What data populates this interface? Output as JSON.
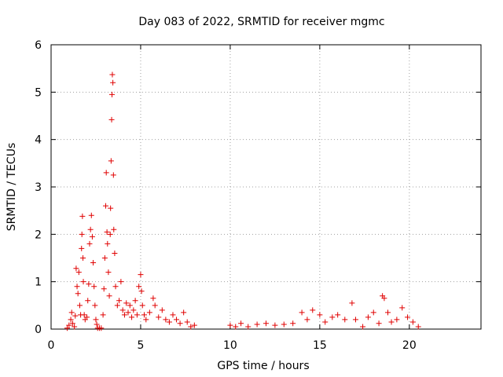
{
  "chart_data": {
    "type": "scatter",
    "title": "Day 083 of 2022, SRMTID for receiver mgmc",
    "xlabel": "GPS time / hours",
    "ylabel": "SRMTID / TECUs",
    "xlim": [
      0,
      24
    ],
    "ylim": [
      0,
      6
    ],
    "xticks": [
      0,
      5,
      10,
      15,
      20
    ],
    "yticks": [
      0,
      1,
      2,
      3,
      4,
      5,
      6
    ],
    "grid": true,
    "marker": "+",
    "color": "#e00000",
    "series": [
      {
        "name": "SRMTID",
        "points": [
          [
            0.9,
            0.02
          ],
          [
            1.0,
            0.08
          ],
          [
            1.1,
            0.2
          ],
          [
            1.15,
            0.35
          ],
          [
            1.2,
            0.12
          ],
          [
            1.3,
            0.05
          ],
          [
            1.35,
            0.28
          ],
          [
            1.4,
            1.28
          ],
          [
            1.45,
            0.9
          ],
          [
            1.5,
            0.75
          ],
          [
            1.55,
            1.2
          ],
          [
            1.6,
            0.5
          ],
          [
            1.65,
            0.3
          ],
          [
            1.7,
            1.7
          ],
          [
            1.72,
            2.0
          ],
          [
            1.75,
            2.38
          ],
          [
            1.78,
            1.5
          ],
          [
            1.8,
            1.0
          ],
          [
            1.85,
            0.3
          ],
          [
            1.9,
            0.2
          ],
          [
            2.0,
            0.25
          ],
          [
            2.05,
            0.6
          ],
          [
            2.1,
            0.95
          ],
          [
            2.15,
            1.8
          ],
          [
            2.2,
            2.1
          ],
          [
            2.25,
            2.4
          ],
          [
            2.3,
            1.95
          ],
          [
            2.35,
            1.4
          ],
          [
            2.4,
            0.9
          ],
          [
            2.45,
            0.5
          ],
          [
            2.5,
            0.2
          ],
          [
            2.55,
            0.1
          ],
          [
            2.6,
            0.02
          ],
          [
            2.7,
            0.02
          ],
          [
            2.8,
            0.02
          ],
          [
            2.9,
            0.3
          ],
          [
            2.95,
            0.85
          ],
          [
            3.0,
            1.5
          ],
          [
            3.05,
            2.6
          ],
          [
            3.08,
            3.3
          ],
          [
            3.12,
            2.05
          ],
          [
            3.15,
            1.8
          ],
          [
            3.2,
            1.2
          ],
          [
            3.25,
            0.7
          ],
          [
            3.3,
            2.0
          ],
          [
            3.32,
            2.55
          ],
          [
            3.35,
            3.55
          ],
          [
            3.38,
            4.42
          ],
          [
            3.4,
            4.95
          ],
          [
            3.42,
            5.37
          ],
          [
            3.45,
            5.2
          ],
          [
            3.48,
            3.25
          ],
          [
            3.5,
            2.1
          ],
          [
            3.55,
            1.6
          ],
          [
            3.6,
            0.9
          ],
          [
            3.7,
            0.5
          ],
          [
            3.8,
            0.6
          ],
          [
            3.9,
            1.0
          ],
          [
            4.0,
            0.4
          ],
          [
            4.1,
            0.3
          ],
          [
            4.2,
            0.55
          ],
          [
            4.3,
            0.35
          ],
          [
            4.4,
            0.5
          ],
          [
            4.5,
            0.25
          ],
          [
            4.6,
            0.4
          ],
          [
            4.7,
            0.6
          ],
          [
            4.8,
            0.3
          ],
          [
            4.9,
            0.9
          ],
          [
            5.0,
            1.15
          ],
          [
            5.05,
            0.8
          ],
          [
            5.1,
            0.5
          ],
          [
            5.2,
            0.3
          ],
          [
            5.3,
            0.2
          ],
          [
            5.5,
            0.35
          ],
          [
            5.7,
            0.65
          ],
          [
            5.8,
            0.5
          ],
          [
            6.0,
            0.25
          ],
          [
            6.2,
            0.4
          ],
          [
            6.4,
            0.2
          ],
          [
            6.6,
            0.15
          ],
          [
            6.8,
            0.3
          ],
          [
            7.0,
            0.2
          ],
          [
            7.2,
            0.12
          ],
          [
            7.4,
            0.35
          ],
          [
            7.6,
            0.15
          ],
          [
            7.8,
            0.05
          ],
          [
            8.0,
            0.08
          ],
          [
            10.0,
            0.08
          ],
          [
            10.3,
            0.05
          ],
          [
            10.6,
            0.12
          ],
          [
            11.0,
            0.05
          ],
          [
            11.5,
            0.1
          ],
          [
            12.0,
            0.12
          ],
          [
            12.5,
            0.08
          ],
          [
            13.0,
            0.1
          ],
          [
            13.5,
            0.12
          ],
          [
            14.0,
            0.35
          ],
          [
            14.3,
            0.2
          ],
          [
            14.6,
            0.4
          ],
          [
            15.0,
            0.3
          ],
          [
            15.3,
            0.15
          ],
          [
            15.7,
            0.25
          ],
          [
            16.0,
            0.3
          ],
          [
            16.4,
            0.2
          ],
          [
            16.8,
            0.55
          ],
          [
            17.0,
            0.2
          ],
          [
            17.4,
            0.05
          ],
          [
            17.7,
            0.25
          ],
          [
            18.0,
            0.35
          ],
          [
            18.3,
            0.12
          ],
          [
            18.5,
            0.7
          ],
          [
            18.6,
            0.65
          ],
          [
            18.8,
            0.35
          ],
          [
            19.0,
            0.15
          ],
          [
            19.3,
            0.2
          ],
          [
            19.6,
            0.45
          ],
          [
            19.9,
            0.25
          ],
          [
            20.2,
            0.15
          ],
          [
            20.5,
            0.05
          ]
        ]
      }
    ]
  }
}
